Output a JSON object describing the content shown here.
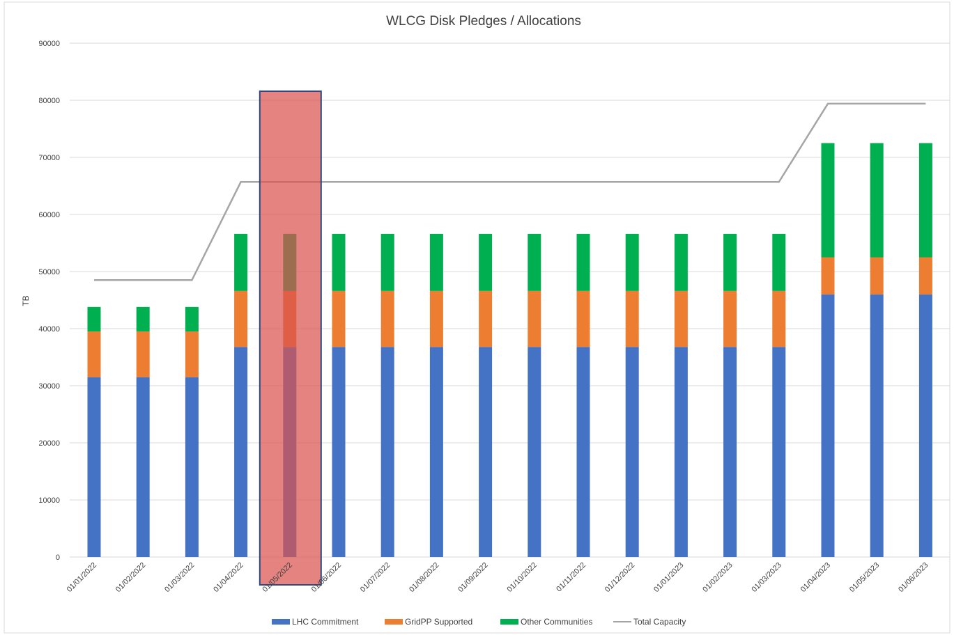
{
  "chart_data": {
    "type": "bar",
    "stacked": true,
    "title": "WLCG Disk Pledges / Allocations",
    "xlabel": "",
    "ylabel": "TB",
    "ylim": [
      0,
      90000
    ],
    "yticks": [
      0,
      10000,
      20000,
      30000,
      40000,
      50000,
      60000,
      70000,
      80000,
      90000
    ],
    "grid": true,
    "legend_position": "bottom",
    "categories": [
      "01/01/2022",
      "01/02/2022",
      "01/03/2022",
      "01/04/2022",
      "01/05/2022",
      "01/06/2022",
      "01/07/2022",
      "01/08/2022",
      "01/09/2022",
      "01/10/2022",
      "01/11/2022",
      "01/12/2022",
      "01/01/2023",
      "01/02/2023",
      "01/03/2023",
      "01/04/2023",
      "01/05/2023",
      "01/06/2023"
    ],
    "series": [
      {
        "name": "LHC Commitment",
        "type": "bar",
        "color": "#4472C4",
        "values": [
          31500,
          31500,
          31500,
          36800,
          36800,
          36800,
          36800,
          36800,
          36800,
          36800,
          36800,
          36800,
          36800,
          36800,
          36800,
          46000,
          46000,
          46000
        ]
      },
      {
        "name": "GridPP Supported",
        "type": "bar",
        "color": "#ED7D31",
        "values": [
          8000,
          8000,
          8000,
          9800,
          9800,
          9800,
          9800,
          9800,
          9800,
          9800,
          9800,
          9800,
          9800,
          9800,
          9800,
          6500,
          6500,
          6500
        ]
      },
      {
        "name": "Other Communities",
        "type": "bar",
        "color": "#00B050",
        "values": [
          4300,
          4300,
          4300,
          10000,
          10000,
          10000,
          10000,
          10000,
          10000,
          10000,
          10000,
          10000,
          10000,
          10000,
          10000,
          20000,
          20000,
          20000
        ]
      },
      {
        "name": "Total Capacity",
        "type": "line",
        "color": "#A5A5A5",
        "values": [
          48500,
          48500,
          48500,
          65700,
          65700,
          65700,
          65700,
          65700,
          65700,
          65700,
          65700,
          65700,
          65700,
          65700,
          65700,
          79400,
          79400,
          79400
        ]
      }
    ],
    "highlight": {
      "category_index": 4,
      "fill": "#D9534F",
      "border": "#2F4A7F"
    }
  }
}
